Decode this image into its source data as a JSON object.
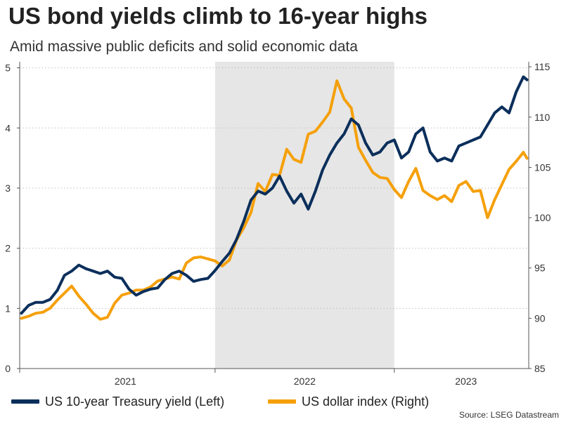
{
  "title": "US bond yields climb to 16-year highs",
  "subtitle": "Amid massive public deficits and solid economic data",
  "source": "Source: LSEG Datastream",
  "colors": {
    "yield": "#0b2f5b",
    "dollar": "#f5a00a",
    "shade": "#e6e6e6",
    "grid": "#bfbfbf",
    "axis": "#555555"
  },
  "chart_data": {
    "type": "line",
    "x_unit": "year",
    "x_range": [
      2020.91,
      2023.75
    ],
    "x_ticks": [
      {
        "x": 2021.5,
        "label": "2021"
      },
      {
        "x": 2022.5,
        "label": "2022"
      },
      {
        "x": 2023.4,
        "label": "2023"
      }
    ],
    "x_tick_marks": [
      2020.91,
      2022.0,
      2023.0
    ],
    "shaded_period": [
      2022.0,
      2023.0
    ],
    "left_axis": {
      "ylim": [
        0,
        5.1
      ],
      "ticks": [
        "0",
        "1",
        "2",
        "3",
        "4",
        "5"
      ]
    },
    "right_axis": {
      "ylim": [
        85,
        115.5
      ],
      "ticks": [
        "85",
        "90",
        "95",
        "100",
        "105",
        "110",
        "115"
      ]
    },
    "legend_position": "bottom",
    "grid": "horizontal dotted",
    "series": [
      {
        "name": "US 10-year Treasury yield (Left)",
        "axis": "left",
        "points": [
          [
            2020.92,
            0.92
          ],
          [
            2020.96,
            1.05
          ],
          [
            2021.0,
            1.1
          ],
          [
            2021.04,
            1.1
          ],
          [
            2021.08,
            1.15
          ],
          [
            2021.12,
            1.3
          ],
          [
            2021.16,
            1.55
          ],
          [
            2021.2,
            1.62
          ],
          [
            2021.24,
            1.72
          ],
          [
            2021.28,
            1.66
          ],
          [
            2021.32,
            1.62
          ],
          [
            2021.36,
            1.58
          ],
          [
            2021.4,
            1.62
          ],
          [
            2021.44,
            1.52
          ],
          [
            2021.48,
            1.5
          ],
          [
            2021.52,
            1.32
          ],
          [
            2021.56,
            1.22
          ],
          [
            2021.6,
            1.28
          ],
          [
            2021.64,
            1.32
          ],
          [
            2021.68,
            1.34
          ],
          [
            2021.72,
            1.48
          ],
          [
            2021.76,
            1.58
          ],
          [
            2021.8,
            1.62
          ],
          [
            2021.84,
            1.55
          ],
          [
            2021.88,
            1.45
          ],
          [
            2021.92,
            1.48
          ],
          [
            2021.96,
            1.5
          ],
          [
            2022.0,
            1.63
          ],
          [
            2022.04,
            1.78
          ],
          [
            2022.08,
            1.92
          ],
          [
            2022.12,
            2.15
          ],
          [
            2022.16,
            2.45
          ],
          [
            2022.2,
            2.8
          ],
          [
            2022.24,
            2.95
          ],
          [
            2022.28,
            2.9
          ],
          [
            2022.32,
            3.0
          ],
          [
            2022.36,
            3.2
          ],
          [
            2022.4,
            2.95
          ],
          [
            2022.44,
            2.75
          ],
          [
            2022.48,
            2.9
          ],
          [
            2022.52,
            2.65
          ],
          [
            2022.56,
            2.95
          ],
          [
            2022.6,
            3.3
          ],
          [
            2022.64,
            3.55
          ],
          [
            2022.68,
            3.75
          ],
          [
            2022.72,
            3.9
          ],
          [
            2022.76,
            4.15
          ],
          [
            2022.8,
            4.05
          ],
          [
            2022.84,
            3.75
          ],
          [
            2022.88,
            3.55
          ],
          [
            2022.92,
            3.6
          ],
          [
            2022.96,
            3.75
          ],
          [
            2023.0,
            3.8
          ],
          [
            2023.04,
            3.5
          ],
          [
            2023.08,
            3.6
          ],
          [
            2023.12,
            3.9
          ],
          [
            2023.16,
            4.0
          ],
          [
            2023.2,
            3.6
          ],
          [
            2023.24,
            3.45
          ],
          [
            2023.28,
            3.5
          ],
          [
            2023.32,
            3.45
          ],
          [
            2023.36,
            3.7
          ],
          [
            2023.4,
            3.75
          ],
          [
            2023.44,
            3.8
          ],
          [
            2023.48,
            3.85
          ],
          [
            2023.52,
            4.05
          ],
          [
            2023.56,
            4.25
          ],
          [
            2023.6,
            4.35
          ],
          [
            2023.64,
            4.25
          ],
          [
            2023.68,
            4.6
          ],
          [
            2023.72,
            4.85
          ],
          [
            2023.74,
            4.8
          ]
        ]
      },
      {
        "name": "US dollar index (Right)",
        "axis": "right",
        "points": [
          [
            2020.92,
            90.0
          ],
          [
            2020.96,
            90.2
          ],
          [
            2021.0,
            90.5
          ],
          [
            2021.04,
            90.6
          ],
          [
            2021.08,
            91.0
          ],
          [
            2021.12,
            91.8
          ],
          [
            2021.16,
            92.5
          ],
          [
            2021.2,
            93.2
          ],
          [
            2021.24,
            92.2
          ],
          [
            2021.28,
            91.4
          ],
          [
            2021.32,
            90.5
          ],
          [
            2021.36,
            89.9
          ],
          [
            2021.4,
            90.1
          ],
          [
            2021.44,
            91.5
          ],
          [
            2021.48,
            92.3
          ],
          [
            2021.52,
            92.5
          ],
          [
            2021.56,
            92.8
          ],
          [
            2021.6,
            92.8
          ],
          [
            2021.64,
            93.1
          ],
          [
            2021.68,
            93.7
          ],
          [
            2021.72,
            93.9
          ],
          [
            2021.76,
            94.1
          ],
          [
            2021.8,
            93.9
          ],
          [
            2021.84,
            95.5
          ],
          [
            2021.88,
            96.0
          ],
          [
            2021.92,
            96.1
          ],
          [
            2021.96,
            95.9
          ],
          [
            2022.0,
            95.7
          ],
          [
            2022.04,
            95.2
          ],
          [
            2022.08,
            95.8
          ],
          [
            2022.12,
            97.8
          ],
          [
            2022.16,
            99.0
          ],
          [
            2022.2,
            100.5
          ],
          [
            2022.24,
            103.4
          ],
          [
            2022.28,
            102.6
          ],
          [
            2022.32,
            104.3
          ],
          [
            2022.36,
            104.2
          ],
          [
            2022.4,
            106.8
          ],
          [
            2022.44,
            105.8
          ],
          [
            2022.48,
            105.5
          ],
          [
            2022.52,
            108.3
          ],
          [
            2022.56,
            108.6
          ],
          [
            2022.6,
            109.5
          ],
          [
            2022.64,
            110.5
          ],
          [
            2022.68,
            113.6
          ],
          [
            2022.72,
            111.8
          ],
          [
            2022.76,
            110.9
          ],
          [
            2022.8,
            107.0
          ],
          [
            2022.84,
            105.7
          ],
          [
            2022.88,
            104.5
          ],
          [
            2022.92,
            104.0
          ],
          [
            2022.96,
            103.9
          ],
          [
            2023.0,
            102.8
          ],
          [
            2023.04,
            102.0
          ],
          [
            2023.08,
            103.6
          ],
          [
            2023.12,
            104.9
          ],
          [
            2023.16,
            102.7
          ],
          [
            2023.2,
            102.2
          ],
          [
            2023.24,
            101.8
          ],
          [
            2023.28,
            102.2
          ],
          [
            2023.32,
            101.6
          ],
          [
            2023.36,
            103.2
          ],
          [
            2023.4,
            103.6
          ],
          [
            2023.44,
            102.6
          ],
          [
            2023.48,
            102.7
          ],
          [
            2023.52,
            100.0
          ],
          [
            2023.56,
            101.8
          ],
          [
            2023.6,
            103.3
          ],
          [
            2023.64,
            104.8
          ],
          [
            2023.68,
            105.6
          ],
          [
            2023.72,
            106.5
          ],
          [
            2023.74,
            105.9
          ]
        ]
      }
    ]
  }
}
